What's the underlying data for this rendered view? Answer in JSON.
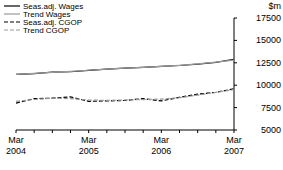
{
  "chart_data": {
    "type": "line",
    "ylabel": "$m",
    "categories": [
      "Mar 2004",
      null,
      null,
      null,
      "Mar 2005",
      null,
      null,
      null,
      "Mar 2006",
      null,
      null,
      null,
      "Mar 2007"
    ],
    "series": [
      {
        "name": "Seas.adj. Wages",
        "color": "#000000",
        "line_style": "solid",
        "values": [
          11200,
          11300,
          11450,
          11500,
          11650,
          11800,
          11900,
          12000,
          12100,
          12200,
          12350,
          12550,
          12900
        ]
      },
      {
        "name": "Trend Wages",
        "color": "#9a9a9a",
        "line_style": "solid",
        "values": [
          11200,
          11320,
          11440,
          11550,
          11670,
          11790,
          11900,
          12000,
          12100,
          12220,
          12380,
          12580,
          12800
        ]
      },
      {
        "name": "Seas.adj. CGOP",
        "color": "#000000",
        "line_style": "dashed",
        "values": [
          8000,
          8500,
          8550,
          8700,
          8200,
          8250,
          8300,
          8500,
          8250,
          8650,
          9000,
          9200,
          9600
        ]
      },
      {
        "name": "Trend CGOP",
        "color": "#9a9a9a",
        "line_style": "dashed",
        "values": [
          8200,
          8400,
          8550,
          8500,
          8350,
          8300,
          8350,
          8400,
          8450,
          8600,
          8900,
          9200,
          9500
        ]
      }
    ],
    "ylim": [
      5000,
      17500
    ],
    "yticks": [
      5000,
      7500,
      10000,
      12500,
      15000,
      17500
    ],
    "legend": "upper-left",
    "grid": false
  }
}
